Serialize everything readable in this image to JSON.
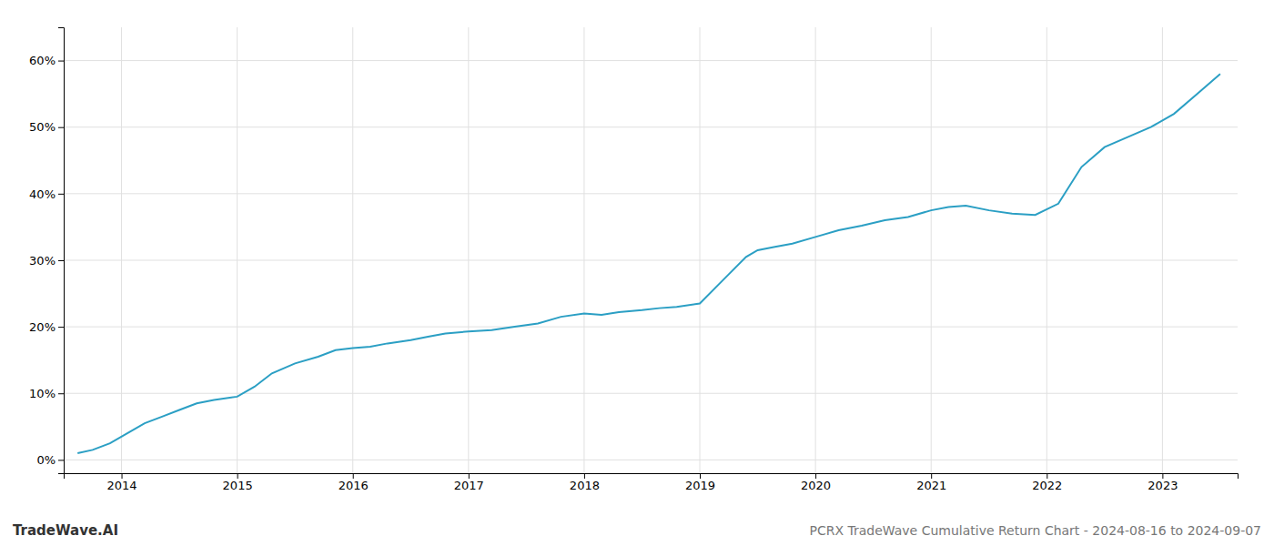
{
  "chart_data": {
    "type": "line",
    "title": "PCRX TradeWave Cumulative Return Chart - 2024-08-16 to 2024-09-07",
    "annotations": [
      "TradeWave.AI"
    ],
    "color": "#2b9fc4",
    "grid": true,
    "x": [
      2013.62,
      2013.75,
      2013.9,
      2014.05,
      2014.2,
      2014.35,
      2014.5,
      2014.65,
      2014.8,
      2015.0,
      2015.15,
      2015.3,
      2015.5,
      2015.7,
      2015.85,
      2016.0,
      2016.15,
      2016.3,
      2016.5,
      2016.65,
      2016.8,
      2017.0,
      2017.2,
      2017.4,
      2017.6,
      2017.8,
      2018.0,
      2018.15,
      2018.3,
      2018.5,
      2018.65,
      2018.8,
      2019.0,
      2019.2,
      2019.4,
      2019.5,
      2019.65,
      2019.8,
      2020.0,
      2020.2,
      2020.4,
      2020.6,
      2020.8,
      2021.0,
      2021.15,
      2021.3,
      2021.5,
      2021.7,
      2021.9,
      2022.1,
      2022.3,
      2022.5,
      2022.7,
      2022.9,
      2023.1,
      2023.3,
      2023.5
    ],
    "values": [
      1.0,
      1.5,
      2.5,
      4.0,
      5.5,
      6.5,
      7.5,
      8.5,
      9.0,
      9.5,
      11.0,
      13.0,
      14.5,
      15.5,
      16.5,
      16.8,
      17.0,
      17.5,
      18.0,
      18.5,
      19.0,
      19.3,
      19.5,
      20.0,
      20.5,
      21.5,
      22.0,
      21.8,
      22.2,
      22.5,
      22.8,
      23.0,
      23.5,
      27.0,
      30.5,
      31.5,
      32.0,
      32.5,
      33.5,
      34.5,
      35.2,
      36.0,
      36.5,
      37.5,
      38.0,
      38.2,
      37.5,
      37.0,
      36.8,
      38.5,
      44.0,
      47.0,
      48.5,
      50.0,
      52.0,
      55.0,
      58.0
    ],
    "xlim": [
      2013.5,
      2023.65
    ],
    "xticks": [
      2014,
      2015,
      2016,
      2017,
      2018,
      2019,
      2020,
      2021,
      2022,
      2023
    ],
    "ylim": [
      -2,
      65
    ],
    "yticks": [
      {
        "value": 0,
        "label": "0%"
      },
      {
        "value": 10,
        "label": "10%"
      },
      {
        "value": 20,
        "label": "20%"
      },
      {
        "value": 30,
        "label": "30%"
      },
      {
        "value": 40,
        "label": "40%"
      },
      {
        "value": 50,
        "label": "50%"
      },
      {
        "value": 60,
        "label": "60%"
      }
    ]
  }
}
